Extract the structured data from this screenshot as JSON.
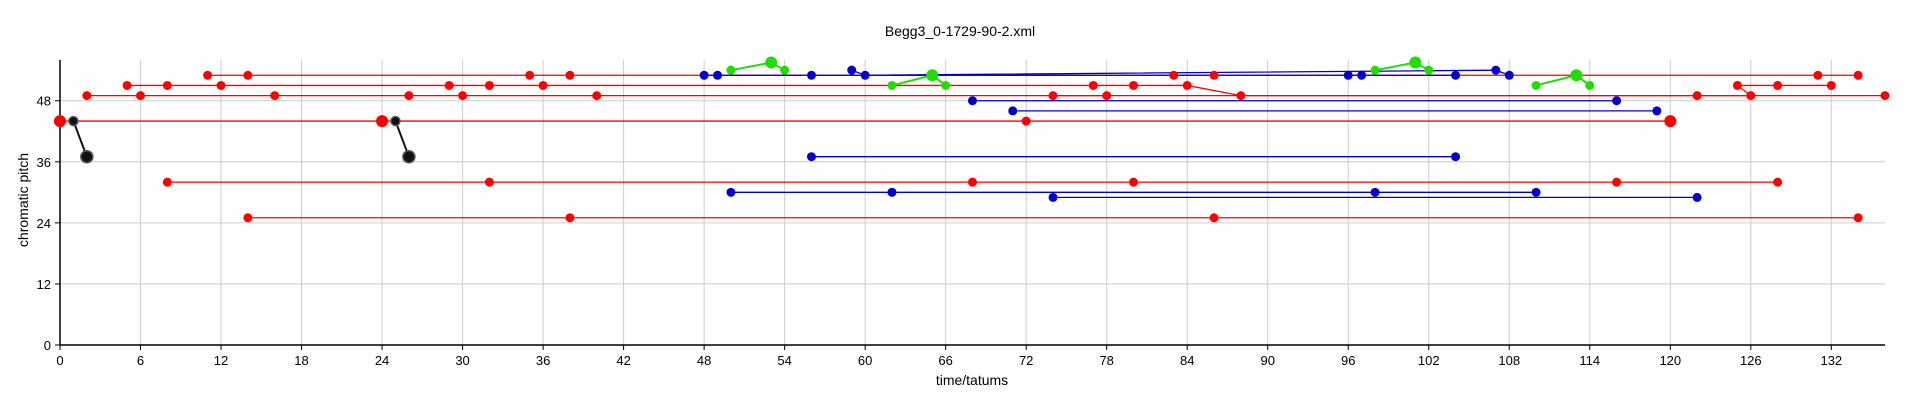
{
  "chart_data": {
    "type": "scatter",
    "title": "Begg3_0-1729-90-2.xml",
    "xlabel": "time/tatums",
    "ylabel": "chromatic pitch",
    "xlim": [
      0,
      136
    ],
    "ylim": [
      0,
      56
    ],
    "x_ticks": [
      0,
      6,
      12,
      18,
      24,
      30,
      36,
      42,
      48,
      54,
      60,
      66,
      72,
      78,
      84,
      90,
      96,
      102,
      108,
      114,
      120,
      126,
      132
    ],
    "y_ticks": [
      0,
      12,
      24,
      36,
      48
    ],
    "grid": true,
    "colors": {
      "red": "#ff0000",
      "blue": "#0000cc",
      "green": "#22dd00",
      "black": "#111111",
      "grid": "#cccccc"
    },
    "series": [
      {
        "color": "red",
        "kind": "line",
        "points": [
          [
            0,
            44
          ],
          [
            24,
            44
          ],
          [
            72,
            44
          ],
          [
            120,
            44
          ]
        ],
        "sizes": [
          1,
          1,
          1,
          1
        ]
      },
      {
        "color": "red",
        "kind": "line",
        "points": [
          [
            2,
            49
          ],
          [
            6,
            49
          ],
          [
            16,
            49
          ],
          [
            26,
            49
          ],
          [
            30,
            49
          ],
          [
            40,
            49
          ],
          [
            136,
            49
          ]
        ]
      },
      {
        "color": "red",
        "kind": "line",
        "points": [
          [
            5,
            51
          ],
          [
            8,
            51
          ],
          [
            12,
            51
          ],
          [
            29,
            51
          ],
          [
            32,
            51
          ],
          [
            36,
            51
          ],
          [
            77,
            51
          ],
          [
            80,
            51
          ],
          [
            84,
            51
          ],
          [
            88,
            49
          ],
          [
            122,
            49
          ],
          [
            126,
            49
          ],
          [
            125,
            51
          ],
          [
            128,
            51
          ],
          [
            132,
            51
          ]
        ]
      },
      {
        "color": "red",
        "kind": "line",
        "points": [
          [
            11,
            53
          ],
          [
            14,
            53
          ],
          [
            35,
            53
          ],
          [
            38,
            53
          ],
          [
            83,
            53
          ],
          [
            86,
            53
          ],
          [
            131,
            53
          ],
          [
            134,
            53
          ]
        ]
      },
      {
        "color": "red",
        "kind": "line",
        "points": [
          [
            74,
            49
          ],
          [
            78,
            49
          ]
        ]
      },
      {
        "color": "red",
        "kind": "line",
        "points": [
          [
            8,
            32
          ],
          [
            32,
            32
          ],
          [
            68,
            32
          ],
          [
            80,
            32
          ],
          [
            116,
            32
          ],
          [
            128,
            32
          ]
        ]
      },
      {
        "color": "red",
        "kind": "line",
        "points": [
          [
            14,
            25
          ],
          [
            38,
            25
          ],
          [
            86,
            25
          ],
          [
            134,
            25
          ]
        ]
      },
      {
        "color": "blue",
        "kind": "line",
        "points": [
          [
            48,
            53
          ],
          [
            49,
            53
          ],
          [
            56,
            53
          ],
          [
            96,
            53
          ],
          [
            97,
            53
          ],
          [
            104,
            53
          ]
        ]
      },
      {
        "color": "blue",
        "kind": "line",
        "points": [
          [
            59,
            54
          ],
          [
            60,
            53
          ],
          [
            107,
            54
          ],
          [
            108,
            53
          ]
        ]
      },
      {
        "color": "blue",
        "kind": "line",
        "points": [
          [
            68,
            48
          ],
          [
            116,
            48
          ]
        ]
      },
      {
        "color": "blue",
        "kind": "line",
        "points": [
          [
            71,
            46
          ],
          [
            119,
            46
          ]
        ]
      },
      {
        "color": "blue",
        "kind": "line",
        "points": [
          [
            56,
            37
          ],
          [
            104,
            37
          ]
        ]
      },
      {
        "color": "blue",
        "kind": "line",
        "points": [
          [
            50,
            30
          ],
          [
            62,
            30
          ],
          [
            98,
            30
          ],
          [
            110,
            30
          ]
        ]
      },
      {
        "color": "blue",
        "kind": "line",
        "points": [
          [
            74,
            29
          ],
          [
            122,
            29
          ]
        ]
      },
      {
        "color": "green",
        "kind": "polyline",
        "points": [
          [
            50,
            54
          ],
          [
            53,
            55.5
          ],
          [
            54,
            54
          ]
        ]
      },
      {
        "color": "green",
        "kind": "polyline",
        "points": [
          [
            62,
            51
          ],
          [
            65,
            53
          ],
          [
            66,
            51
          ]
        ]
      },
      {
        "color": "green",
        "kind": "polyline",
        "points": [
          [
            98,
            54
          ],
          [
            101,
            55.5
          ],
          [
            102,
            54
          ]
        ]
      },
      {
        "color": "green",
        "kind": "polyline",
        "points": [
          [
            110,
            51
          ],
          [
            113,
            53
          ],
          [
            114,
            51
          ]
        ]
      },
      {
        "color": "black",
        "kind": "polyline",
        "points": [
          [
            1,
            44
          ],
          [
            2,
            37
          ]
        ]
      },
      {
        "color": "black",
        "kind": "polyline",
        "points": [
          [
            25,
            44
          ],
          [
            26,
            37
          ]
        ]
      }
    ]
  }
}
